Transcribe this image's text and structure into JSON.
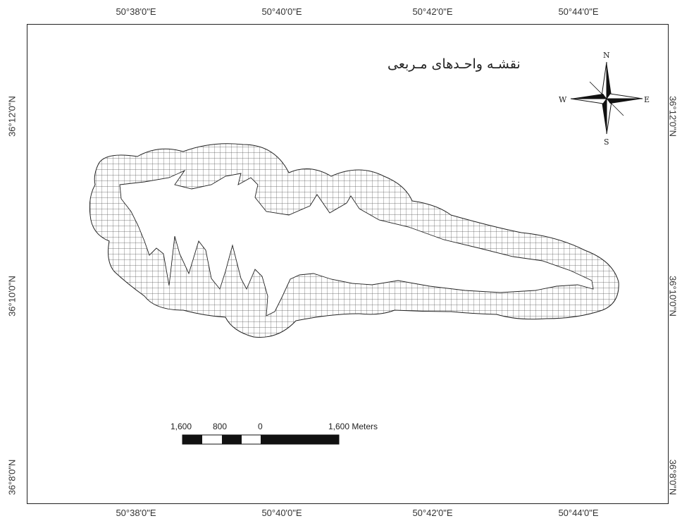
{
  "map": {
    "title": "نقشـه واحـدهای مـربعی",
    "longitude_labels": [
      "50°38'0\"E",
      "50°40'0\"E",
      "50°42'0\"E",
      "50°44'0\"E"
    ],
    "latitude_labels": [
      "36°12'0\"N",
      "36°10'0\"N",
      "36°8'0\"N"
    ],
    "north_arrow": {
      "n": "N",
      "s": "S",
      "e": "E",
      "w": "W"
    },
    "scale_bar": {
      "labels": [
        "1,600",
        "800",
        "0",
        "1,600 Meters"
      ],
      "unit": "Meters"
    },
    "grid_fill": "square-grid-hatch",
    "colors": {
      "outline": "#222222",
      "grid": "#555555",
      "background": "#ffffff"
    }
  }
}
